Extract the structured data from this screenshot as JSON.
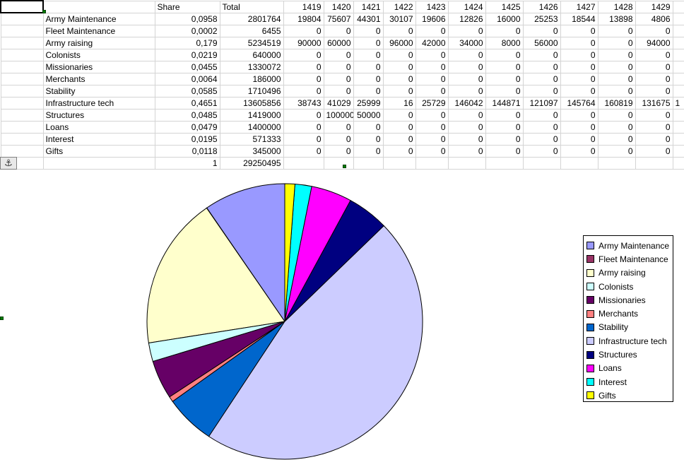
{
  "sheet": {
    "header": {
      "share": "Share",
      "total": "Total",
      "years": [
        "1419",
        "1420",
        "1421",
        "1422",
        "1423",
        "1424",
        "1425",
        "1426",
        "1427",
        "1428",
        "1429"
      ]
    },
    "rows": [
      {
        "name": "Army Maintenance",
        "share": "0,0958",
        "total": "2801764",
        "vals": [
          "19804",
          "75607",
          "44301",
          "30107",
          "19606",
          "12826",
          "16000",
          "25253",
          "18544",
          "13898",
          "4806"
        ]
      },
      {
        "name": "Fleet Maintenance",
        "share": "0,0002",
        "total": "6455",
        "vals": [
          "0",
          "0",
          "0",
          "0",
          "0",
          "0",
          "0",
          "0",
          "0",
          "0",
          "0"
        ]
      },
      {
        "name": "Army raising",
        "share": "0,179",
        "total": "5234519",
        "vals": [
          "90000",
          "60000",
          "0",
          "96000",
          "42000",
          "34000",
          "8000",
          "56000",
          "0",
          "0",
          "94000"
        ]
      },
      {
        "name": "Colonists",
        "share": "0,0219",
        "total": "640000",
        "vals": [
          "0",
          "0",
          "0",
          "0",
          "0",
          "0",
          "0",
          "0",
          "0",
          "0",
          "0"
        ]
      },
      {
        "name": "Missionaries",
        "share": "0,0455",
        "total": "1330072",
        "vals": [
          "0",
          "0",
          "0",
          "0",
          "0",
          "0",
          "0",
          "0",
          "0",
          "0",
          "0"
        ]
      },
      {
        "name": "Merchants",
        "share": "0,0064",
        "total": "186000",
        "vals": [
          "0",
          "0",
          "0",
          "0",
          "0",
          "0",
          "0",
          "0",
          "0",
          "0",
          "0"
        ]
      },
      {
        "name": "Stability",
        "share": "0,0585",
        "total": "1710496",
        "vals": [
          "0",
          "0",
          "0",
          "0",
          "0",
          "0",
          "0",
          "0",
          "0",
          "0",
          "0"
        ]
      },
      {
        "name": "Infrastructure tech",
        "share": "0,4651",
        "total": "13605856",
        "vals": [
          "38743",
          "41029",
          "25999",
          "16",
          "25729",
          "146042",
          "144871",
          "121097",
          "145764",
          "160819",
          "131675"
        ],
        "overflow": "1"
      },
      {
        "name": "Structures",
        "share": "0,0485",
        "total": "1419000",
        "vals": [
          "0",
          "100000",
          "50000",
          "0",
          "0",
          "0",
          "0",
          "0",
          "0",
          "0",
          "0"
        ]
      },
      {
        "name": "Loans",
        "share": "0,0479",
        "total": "1400000",
        "vals": [
          "0",
          "0",
          "0",
          "0",
          "0",
          "0",
          "0",
          "0",
          "0",
          "0",
          "0"
        ]
      },
      {
        "name": "Interest",
        "share": "0,0195",
        "total": "571333",
        "vals": [
          "0",
          "0",
          "0",
          "0",
          "0",
          "0",
          "0",
          "0",
          "0",
          "0",
          "0"
        ]
      },
      {
        "name": "Gifts",
        "share": "0,0118",
        "total": "345000",
        "vals": [
          "0",
          "0",
          "0",
          "0",
          "0",
          "0",
          "0",
          "0",
          "0",
          "0",
          "0"
        ]
      }
    ],
    "footer": {
      "share": "1",
      "total": "29250495"
    }
  },
  "anchor_icon": "anchor-icon",
  "chart_data": {
    "type": "pie",
    "title": "",
    "categories": [
      "Army Maintenance",
      "Fleet Maintenance",
      "Army raising",
      "Colonists",
      "Missionaries",
      "Merchants",
      "Stability",
      "Infrastructure tech",
      "Structures",
      "Loans",
      "Interest",
      "Gifts"
    ],
    "values": [
      2801764,
      6455,
      5234519,
      640000,
      1330072,
      186000,
      1710496,
      13605856,
      1419000,
      1400000,
      571333,
      345000
    ],
    "colors": [
      "#9999ff",
      "#993366",
      "#ffffcc",
      "#ccffff",
      "#660066",
      "#ff8080",
      "#0066cc",
      "#ccccff",
      "#000080",
      "#ff00ff",
      "#00ffff",
      "#ffff00"
    ],
    "legend_position": "right",
    "start_angle": "top, counterclockwise"
  }
}
